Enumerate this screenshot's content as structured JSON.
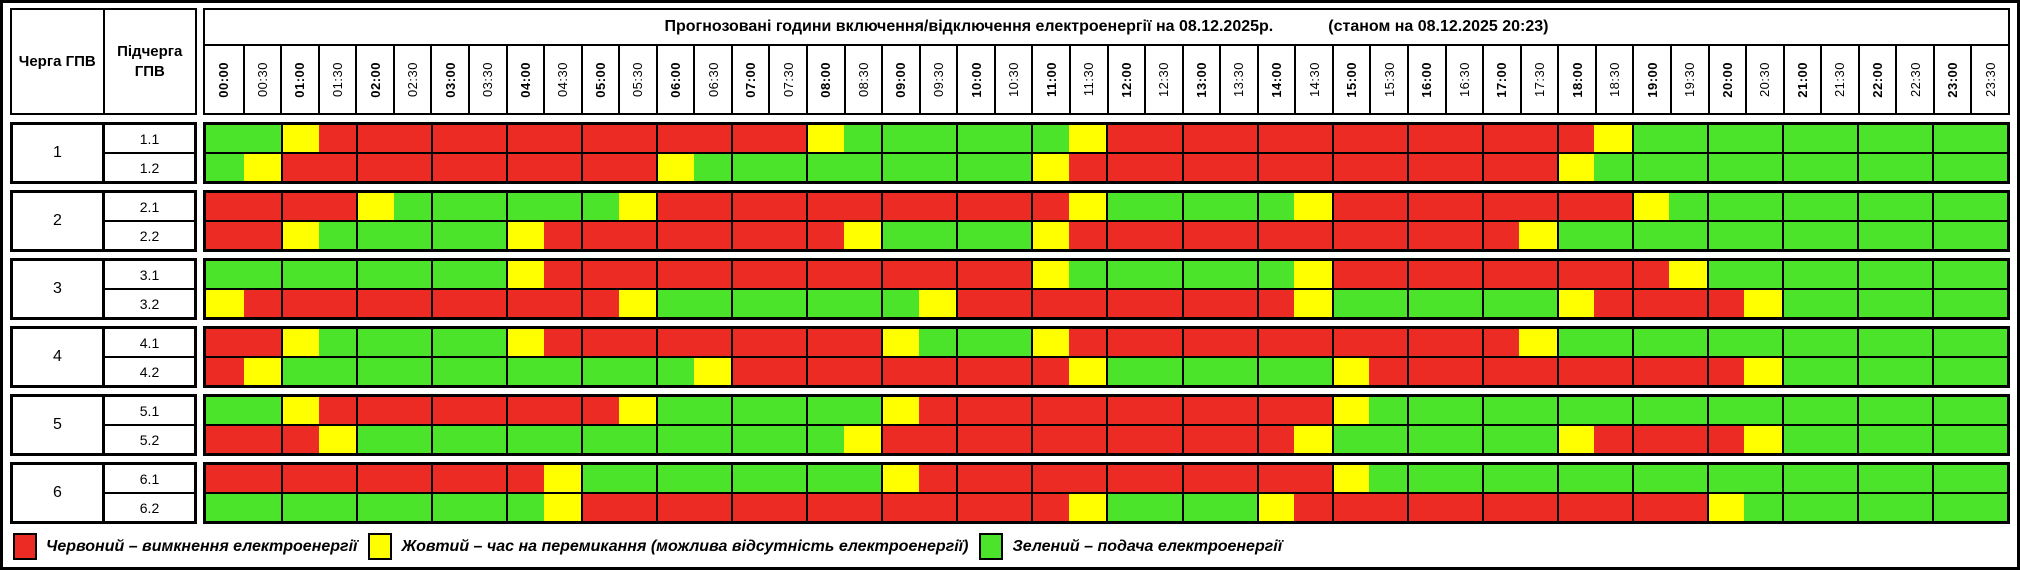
{
  "title": {
    "main": "Прогнозовані години включення/відключення електроенергії на 08.12.2025р.",
    "as_of": "(станом на 08.12.2025 20:23)"
  },
  "corner": {
    "queue_header": "Черга ГПВ",
    "subqueue_header": "Підчерга ГПВ"
  },
  "colors": {
    "red": "#ED2B25",
    "yellow": "#FFFF00",
    "green": "#4CE32B",
    "border": "#000000"
  },
  "legend": {
    "items": [
      {
        "color": "red",
        "label": "Червоний – вимкнення електроенергії"
      },
      {
        "color": "yellow",
        "label": "Жовтий – час на перемикання (можлива відсутність електроенергії)"
      },
      {
        "color": "green",
        "label": "Зелений – подача електроенергії"
      }
    ]
  },
  "chart_data": {
    "type": "heatmap",
    "title": "Прогнозовані години включення/відключення електроенергії на 08.12.2025р.",
    "subtitle": "(станом на 08.12.2025 20:23)",
    "x": [
      "00:00",
      "00:30",
      "01:00",
      "01:30",
      "02:00",
      "02:30",
      "03:00",
      "03:30",
      "04:00",
      "04:30",
      "05:00",
      "05:30",
      "06:00",
      "06:30",
      "07:00",
      "07:30",
      "08:00",
      "08:30",
      "09:00",
      "09:30",
      "10:00",
      "10:30",
      "11:00",
      "11:30",
      "12:00",
      "12:30",
      "13:00",
      "13:30",
      "14:00",
      "14:30",
      "15:00",
      "15:30",
      "16:00",
      "16:30",
      "17:00",
      "17:30",
      "18:00",
      "18:30",
      "19:00",
      "19:30",
      "20:00",
      "20:30",
      "21:00",
      "21:30",
      "22:00",
      "22:30",
      "23:00",
      "23:30"
    ],
    "cell_states": {
      "R": "червоний – вимкнення електроенергії",
      "Y": "жовтий – час на перемикання (можлива відсутність електроенергії)",
      "G": "зелений – подача електроенергії"
    },
    "groups": [
      {
        "queue": "1",
        "subqueues": [
          {
            "label": "1.1",
            "slots": "GGYRRRRRRRRRRRRRYGGGGGGYRRRRRRRRRRRRRYGGGGGGGGGG"
          },
          {
            "label": "1.2",
            "slots": "GYRRRRRRRRRRYGGGGGGGGGYRRRRRRRRRRRRRYGGGGGGGGGGG"
          }
        ]
      },
      {
        "queue": "2",
        "subqueues": [
          {
            "label": "2.1",
            "slots": "RRRRYGGGGGGYRRRRRRRRRRRYGGGGGYRRRRRRRRYGGGGGGGGG"
          },
          {
            "label": "2.2",
            "slots": "RRYGGGGGYRRRRRRRRYGGGGYRRRRRRRRRRRRYGGGGGGGGGGGG"
          }
        ]
      },
      {
        "queue": "3",
        "subqueues": [
          {
            "label": "3.1",
            "slots": "GGGGGGGGYRRRRRRRRRRRRRYGGGGGGYRRRRRRRRRYGGGGGGGG"
          },
          {
            "label": "3.2",
            "slots": "YRRRRRRRRRRYGGGGGGGYRRRRRRRRRYGGGGGGYRRRRYGGGGGG"
          }
        ]
      },
      {
        "queue": "4",
        "subqueues": [
          {
            "label": "4.1",
            "slots": "RRYGGGGGYRRRRRRRRRYGGGYRRRRRRRRRRRRYGGGGGGGGGGGG"
          },
          {
            "label": "4.2",
            "slots": "RYGGGGGGGGGGGYRRRRRRRRRYGGGGGGYRRRRRRRRRRYGGGGGG"
          }
        ]
      },
      {
        "queue": "5",
        "subqueues": [
          {
            "label": "5.1",
            "slots": "GGYRRRRRRRRYGGGGGGYRRRRRRRRRRRYGGGGGGGGGGGGGGGGG"
          },
          {
            "label": "5.2",
            "slots": "RRRYGGGGGGGGGGGGGYRRRRRRRRRRRYGGGGGGYRRRRYGGGGGG"
          }
        ]
      },
      {
        "queue": "6",
        "subqueues": [
          {
            "label": "6.1",
            "slots": "RRRRRRRRRYGGGGGGGGYRRRRRRRRRRRYGGGGGGGGGGGGGGGGG"
          },
          {
            "label": "6.2",
            "slots": "GGGGGGGGGYRRRRRRRRRRRRRYGGGGYRRRRRRRRRRRYGGGGGGG"
          }
        ]
      }
    ]
  }
}
